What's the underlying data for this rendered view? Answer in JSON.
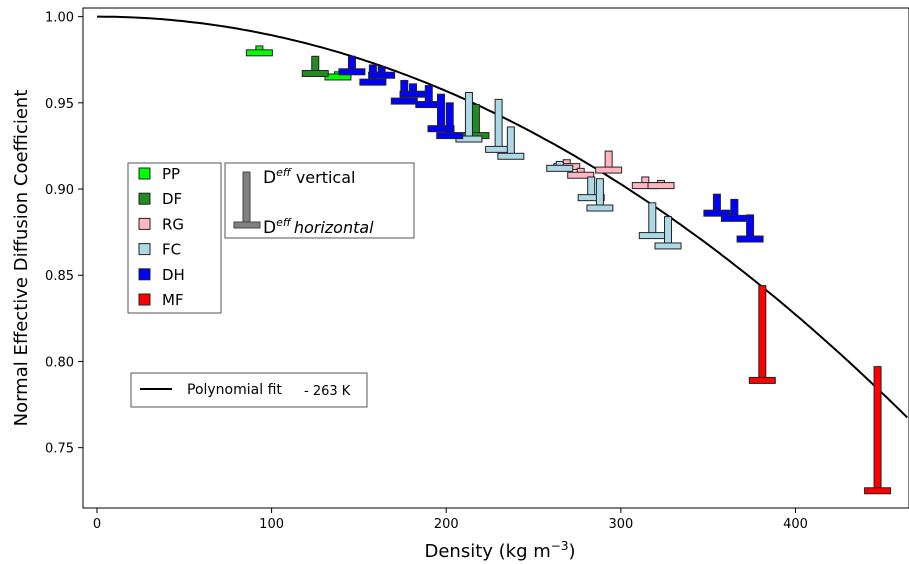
{
  "chart_data": {
    "type": "scatter",
    "title": "",
    "xlabel": "Density (kg m",
    "xlabel_exponent": "−3",
    "xlabel_close": ")",
    "ylabel": "Normal Effective Diffusion Coefficient",
    "xlim": [
      -8,
      465
    ],
    "ylim": [
      0.715,
      1.005
    ],
    "x_ticks": [
      0,
      100,
      200,
      300,
      400
    ],
    "x_tick_labels": [
      "0",
      "100",
      "200",
      "300",
      "400"
    ],
    "y_ticks": [
      1.0,
      0.95,
      0.9,
      0.85,
      0.8,
      0.75
    ],
    "y_tick_labels": [
      "1.00",
      "0.95",
      "0.90",
      "0.85",
      "0.80",
      "0.75"
    ],
    "grid": false,
    "marker_note": "Each marker: vertical bar top = D_eff vertical, horizontal foot = D_eff horizontal",
    "fit": {
      "label": "Polynomial fit",
      "temperature_label": "- 263 K",
      "x0": 0,
      "y0": 1.0,
      "a": 1.08e-06,
      "color": "#000000"
    },
    "category_legend_placement": "center-left",
    "categories": [
      {
        "code": "PP",
        "color": "#00ff00"
      },
      {
        "code": "DF",
        "color": "#228b22"
      },
      {
        "code": "RG",
        "color": "#ffb6c1"
      },
      {
        "code": "FC",
        "color": "#add8e6"
      },
      {
        "code": "DH",
        "color": "#0000ff"
      },
      {
        "code": "MF",
        "color": "#ff0000"
      }
    ],
    "marker_legend": {
      "symbol": "D",
      "superscript": "eff",
      "vertical_label": "vertical",
      "horizontal_label": "horizontal",
      "color": "#808080"
    },
    "series": [
      {
        "name": "PP",
        "points": [
          {
            "x": 93,
            "vertical": 0.983,
            "horizontal": 0.979
          },
          {
            "x": 138,
            "vertical": 0.968,
            "horizontal": 0.965
          }
        ]
      },
      {
        "name": "DF",
        "points": [
          {
            "x": 125,
            "vertical": 0.977,
            "horizontal": 0.967
          },
          {
            "x": 217,
            "vertical": 0.949,
            "horizontal": 0.931
          }
        ]
      },
      {
        "name": "RG",
        "points": [
          {
            "x": 269,
            "vertical": 0.917,
            "horizontal": 0.913
          },
          {
            "x": 277,
            "vertical": 0.912,
            "horizontal": 0.908
          },
          {
            "x": 293,
            "vertical": 0.922,
            "horizontal": 0.911
          },
          {
            "x": 314,
            "vertical": 0.907,
            "horizontal": 0.902
          },
          {
            "x": 323,
            "vertical": 0.905,
            "horizontal": 0.902
          }
        ]
      },
      {
        "name": "FC",
        "points": [
          {
            "x": 213,
            "vertical": 0.956,
            "horizontal": 0.929
          },
          {
            "x": 230,
            "vertical": 0.952,
            "horizontal": 0.923
          },
          {
            "x": 237,
            "vertical": 0.936,
            "horizontal": 0.919
          },
          {
            "x": 265,
            "vertical": 0.916,
            "horizontal": 0.912
          },
          {
            "x": 283,
            "vertical": 0.907,
            "horizontal": 0.895
          },
          {
            "x": 288,
            "vertical": 0.906,
            "horizontal": 0.889
          },
          {
            "x": 318,
            "vertical": 0.892,
            "horizontal": 0.873
          },
          {
            "x": 327,
            "vertical": 0.884,
            "horizontal": 0.867
          }
        ]
      },
      {
        "name": "DH",
        "points": [
          {
            "x": 146,
            "vertical": 0.977,
            "horizontal": 0.968
          },
          {
            "x": 158,
            "vertical": 0.972,
            "horizontal": 0.962
          },
          {
            "x": 163,
            "vertical": 0.971,
            "horizontal": 0.966
          },
          {
            "x": 176,
            "vertical": 0.963,
            "horizontal": 0.951
          },
          {
            "x": 181,
            "vertical": 0.961,
            "horizontal": 0.955
          },
          {
            "x": 190,
            "vertical": 0.96,
            "horizontal": 0.949
          },
          {
            "x": 197,
            "vertical": 0.955,
            "horizontal": 0.935
          },
          {
            "x": 202,
            "vertical": 0.95,
            "horizontal": 0.931
          },
          {
            "x": 355,
            "vertical": 0.897,
            "horizontal": 0.886
          },
          {
            "x": 365,
            "vertical": 0.894,
            "horizontal": 0.883
          },
          {
            "x": 374,
            "vertical": 0.885,
            "horizontal": 0.871
          }
        ]
      },
      {
        "name": "MF",
        "points": [
          {
            "x": 381,
            "vertical": 0.844,
            "horizontal": 0.789
          },
          {
            "x": 447,
            "vertical": 0.797,
            "horizontal": 0.725
          }
        ]
      }
    ]
  }
}
